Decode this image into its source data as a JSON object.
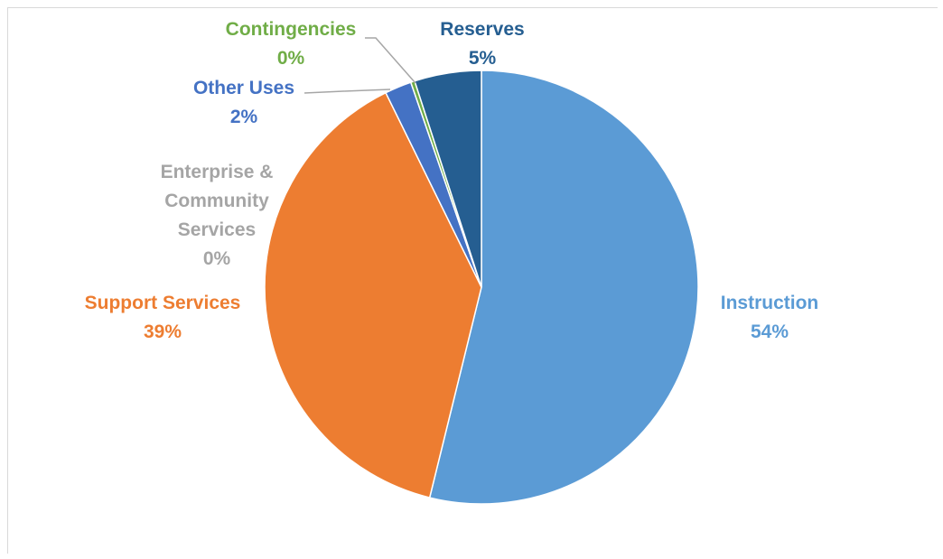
{
  "chart_data": {
    "type": "pie",
    "title": "",
    "slices": [
      {
        "label_lines": [
          "Instruction"
        ],
        "value": 54,
        "value_label": "54%",
        "color": "#5b9bd5",
        "label_color": "#5b9bd5"
      },
      {
        "label_lines": [
          "Support Services"
        ],
        "value": 39,
        "value_label": "39%",
        "color": "#ed7d31",
        "label_color": "#ed7d31"
      },
      {
        "label_lines": [
          "Enterprise &",
          "Community",
          "Services"
        ],
        "value": 0,
        "value_label": "0%",
        "color": "#a5a5a5",
        "label_color": "#a5a5a5"
      },
      {
        "label_lines": [
          "Other Uses"
        ],
        "value": 2,
        "value_label": "2%",
        "color": "#4472c4",
        "label_color": "#4472c4"
      },
      {
        "label_lines": [
          "Contingencies"
        ],
        "value": 0.3,
        "value_label": "0%",
        "color": "#70ad47",
        "label_color": "#70ad47"
      },
      {
        "label_lines": [
          "Reserves"
        ],
        "value": 5,
        "value_label": "5%",
        "color": "#255e91",
        "label_color": "#255e91"
      }
    ],
    "start_angle": "top",
    "direction": "clockwise",
    "legend": "none",
    "data_labels": "outside with leader lines"
  }
}
